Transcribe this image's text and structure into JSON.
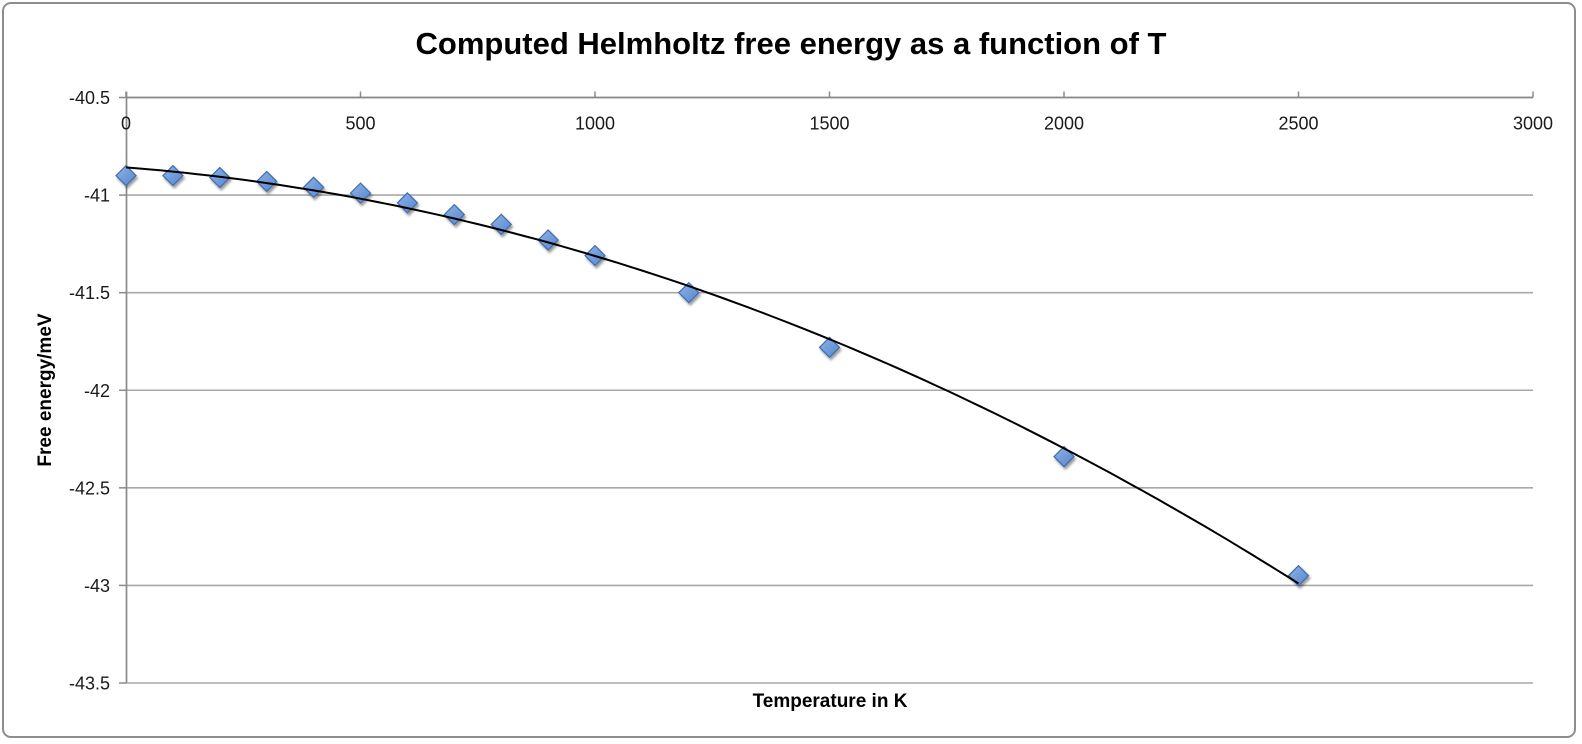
{
  "window": {
    "background": "#ffffff",
    "border_color": "#8d8d8d"
  },
  "chart_data": {
    "type": "scatter",
    "title": "Computed Helmholtz free energy as a function of T",
    "xlabel": "Temperature in K",
    "ylabel": "Free energy/meV",
    "series": [
      {
        "name": "Computed Helmholtz free energy",
        "x": [
          0,
          100,
          200,
          300,
          400,
          500,
          600,
          700,
          800,
          900,
          1000,
          1200,
          1500,
          2000,
          2500
        ],
        "y": [
          -40.9,
          -40.9,
          -40.91,
          -40.93,
          -40.96,
          -40.99,
          -41.04,
          -41.1,
          -41.15,
          -41.23,
          -41.31,
          -41.5,
          -41.78,
          -42.34,
          -42.95
        ]
      }
    ],
    "xlim": [
      0,
      3000
    ],
    "ylim": [
      -43.5,
      -40.5
    ],
    "x_tick_labels": [
      "0",
      "500",
      "1000",
      "1500",
      "2000",
      "2500",
      "3000"
    ],
    "y_tick_labels": [
      "-40.5",
      "-41",
      "-41.5",
      "-42",
      "-42.5",
      "-43",
      "-43.5"
    ],
    "grid": true,
    "legend": "none",
    "marker": "diamond",
    "trendline": {
      "type": "polynomial",
      "order": 2,
      "color": "#000000",
      "width": 2,
      "x_start": 0,
      "x_end": 2500
    },
    "colors": {
      "marker_fill": "#6f9ad9",
      "marker_fill_light": "#90b4e8",
      "marker_stroke": "#3f6cae",
      "gridline": "#a8a8a8",
      "axis": "#8a8a8a",
      "text": "#000000",
      "background": "#ffffff"
    }
  }
}
